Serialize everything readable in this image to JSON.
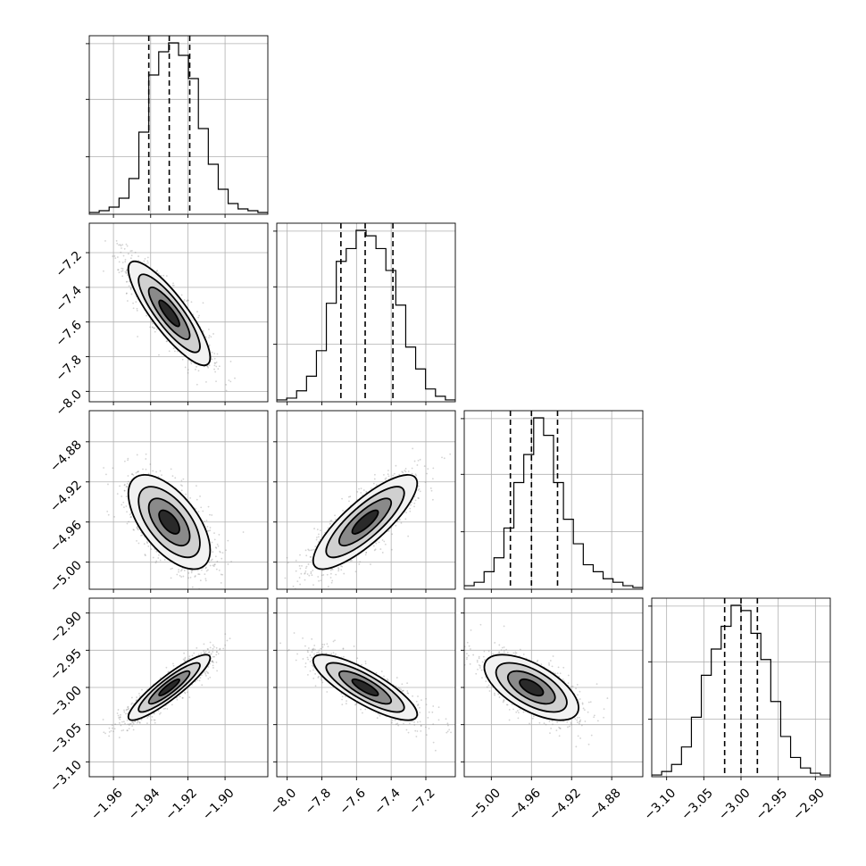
{
  "chart_data": {
    "type": "corner",
    "grid": true,
    "parameters": [
      {
        "index": 0,
        "median": -1.93,
        "quantiles": [
          -1.941,
          -1.93,
          -1.919
        ],
        "range": [
          -1.973,
          -1.877
        ],
        "ticks": [
          -1.96,
          -1.94,
          -1.92,
          -1.9
        ],
        "tick_labels": [
          "−1.96",
          "−1.94",
          "−1.92",
          "−1.90"
        ],
        "hist_counts": [
          1,
          2,
          4,
          9,
          20,
          46,
          78,
          91,
          96,
          89,
          76,
          48,
          28,
          14,
          6,
          3,
          2,
          1
        ]
      },
      {
        "index": 1,
        "median": -7.55,
        "quantiles": [
          -7.69,
          -7.55,
          -7.39
        ],
        "range": [
          -8.06,
          -7.03
        ],
        "ticks": [
          -8.0,
          -7.8,
          -7.6,
          -7.4,
          -7.2
        ],
        "tick_labels": [
          "−8.0",
          "−7.8",
          "−7.6",
          "−7.4",
          "−7.2"
        ],
        "hist_counts": [
          1,
          2,
          6,
          14,
          28,
          54,
          77,
          84,
          94,
          91,
          84,
          72,
          53,
          30,
          18,
          7,
          3,
          1
        ]
      },
      {
        "index": 2,
        "median": -4.96,
        "quantiles": [
          -4.981,
          -4.96,
          -4.934
        ],
        "range": [
          -5.027,
          -4.849
        ],
        "ticks": [
          -5.0,
          -4.96,
          -4.92,
          -4.88
        ],
        "tick_labels": [
          "−5.00",
          "−4.96",
          "−4.92",
          "−4.88"
        ],
        "hist_counts": [
          2,
          4,
          10,
          18,
          35,
          61,
          77,
          98,
          88,
          61,
          40,
          26,
          14,
          10,
          6,
          4,
          2,
          1
        ]
      },
      {
        "index": 3,
        "median": -3.0,
        "quantiles": [
          -3.022,
          -3.0,
          -2.978
        ],
        "range": [
          -3.12,
          -2.88
        ],
        "ticks": [
          -3.1,
          -3.05,
          -3.0,
          -2.95,
          -2.9
        ],
        "tick_labels": [
          "−3.10",
          "−3.05",
          "−3.00",
          "−2.95",
          "−2.90"
        ],
        "hist_counts": [
          1,
          3,
          7,
          17,
          34,
          58,
          73,
          86,
          98,
          95,
          82,
          67,
          43,
          23,
          11,
          5,
          2,
          1
        ]
      }
    ],
    "correlations": {
      "1,0": -0.85,
      "2,0": -0.6,
      "2,1": 0.82,
      "3,0": 0.9,
      "3,1": -0.82,
      "3,2": -0.62
    },
    "pair_data": [
      {
        "row": 1,
        "col": 0,
        "density_peak": [
          -1.93,
          -7.55
        ],
        "contour_levels": [
          "0.5-sigma",
          "1-sigma",
          "1.5-sigma",
          "2-sigma"
        ]
      },
      {
        "row": 2,
        "col": 0,
        "density_peak": [
          -1.93,
          -4.96
        ],
        "contour_levels": [
          "0.5-sigma",
          "1-sigma",
          "1.5-sigma",
          "2-sigma"
        ]
      },
      {
        "row": 2,
        "col": 1,
        "density_peak": [
          -7.55,
          -4.96
        ],
        "contour_levels": [
          "0.5-sigma",
          "1-sigma",
          "1.5-sigma",
          "2-sigma"
        ]
      },
      {
        "row": 3,
        "col": 0,
        "density_peak": [
          -1.93,
          -3.0
        ],
        "contour_levels": [
          "0.5-sigma",
          "1-sigma",
          "1.5-sigma",
          "2-sigma"
        ]
      },
      {
        "row": 3,
        "col": 1,
        "density_peak": [
          -7.55,
          -3.0
        ],
        "contour_levels": [
          "0.5-sigma",
          "1-sigma",
          "1.5-sigma",
          "2-sigma"
        ]
      },
      {
        "row": 3,
        "col": 2,
        "density_peak": [
          -4.96,
          -3.0
        ],
        "contour_levels": [
          "0.5-sigma",
          "1-sigma",
          "1.5-sigma",
          "2-sigma"
        ]
      }
    ],
    "scatter_color": "#808080",
    "line_color": "#000000",
    "grid_color": "#b0b0b0"
  }
}
